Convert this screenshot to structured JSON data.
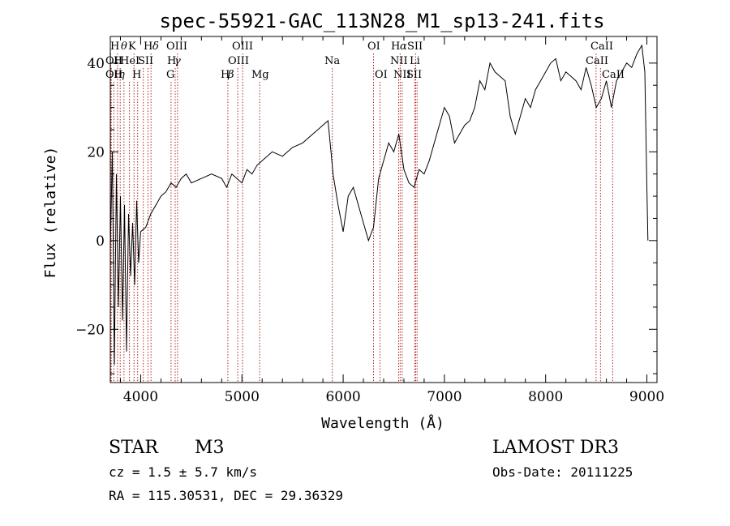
{
  "chart_data": {
    "type": "line",
    "title": "spec-55921-GAC_113N28_M1_sp13-241.fits",
    "xlabel": "Wavelength (Å)",
    "ylabel": "Flux (relative)",
    "xlim": [
      3700,
      9100
    ],
    "ylim": [
      -32,
      46
    ],
    "xticks": [
      4000,
      5000,
      6000,
      7000,
      8000,
      9000
    ],
    "yticks": [
      -20,
      0,
      20,
      40
    ],
    "xtick_labels": [
      "4000",
      "5000",
      "6000",
      "7000",
      "8000",
      "9000"
    ],
    "ytick_labels": [
      "−20",
      "0",
      "20",
      "40"
    ],
    "line_color": "#000000",
    "marker_color": "#b22222",
    "series": [
      {
        "name": "flux",
        "x": [
          3700,
          3720,
          3740,
          3760,
          3780,
          3800,
          3820,
          3840,
          3860,
          3880,
          3900,
          3920,
          3940,
          3960,
          3980,
          4000,
          4050,
          4100,
          4150,
          4200,
          4250,
          4300,
          4350,
          4400,
          4450,
          4500,
          4600,
          4700,
          4800,
          4850,
          4900,
          4950,
          5000,
          5050,
          5100,
          5150,
          5200,
          5300,
          5400,
          5500,
          5600,
          5700,
          5750,
          5800,
          5850,
          5880,
          5900,
          5950,
          6000,
          6050,
          6100,
          6150,
          6200,
          6250,
          6300,
          6350,
          6400,
          6450,
          6500,
          6550,
          6600,
          6650,
          6700,
          6750,
          6800,
          6850,
          6900,
          6950,
          7000,
          7050,
          7100,
          7150,
          7200,
          7250,
          7300,
          7350,
          7400,
          7450,
          7500,
          7550,
          7600,
          7650,
          7700,
          7750,
          7800,
          7850,
          7900,
          7950,
          8000,
          8050,
          8100,
          8150,
          8200,
          8250,
          8300,
          8350,
          8400,
          8450,
          8500,
          8550,
          8600,
          8650,
          8700,
          8750,
          8800,
          8850,
          8900,
          8950,
          8980,
          9000,
          9010
        ],
        "y": [
          -2,
          20,
          -28,
          15,
          -15,
          10,
          -18,
          8,
          -25,
          6,
          -8,
          4,
          -10,
          9,
          -5,
          2,
          3,
          6,
          8,
          10,
          11,
          13,
          12,
          14,
          15,
          13,
          14,
          15,
          14,
          12,
          15,
          14,
          13,
          16,
          15,
          17,
          18,
          20,
          19,
          21,
          22,
          24,
          25,
          26,
          27,
          20,
          15,
          8,
          2,
          10,
          12,
          8,
          4,
          0,
          3,
          14,
          18,
          22,
          20,
          24,
          16,
          13,
          12,
          16,
          15,
          18,
          22,
          26,
          30,
          28,
          22,
          24,
          26,
          27,
          30,
          36,
          34,
          40,
          38,
          37,
          36,
          28,
          24,
          28,
          32,
          30,
          34,
          36,
          38,
          40,
          41,
          36,
          38,
          37,
          36,
          34,
          39,
          35,
          30,
          32,
          36,
          30,
          36,
          38,
          40,
          39,
          42,
          44,
          38,
          12,
          0
        ]
      }
    ],
    "lines": [
      {
        "x": 3704,
        "rows": [
          1
        ]
      },
      {
        "x": 3710,
        "rows": [
          2
        ]
      },
      {
        "x": 3735,
        "rows": [
          3
        ]
      },
      {
        "x": 3771,
        "rows": [
          1
        ]
      },
      {
        "x": 3798,
        "rows": [
          2
        ]
      },
      {
        "x": 3835,
        "rows": [
          3
        ]
      },
      {
        "x": 3889,
        "rows": [
          1,
          2,
          3
        ]
      },
      {
        "x": 3934,
        "label": "K",
        "row": 1
      },
      {
        "x": 3970,
        "label": "H",
        "row": 3
      },
      {
        "x": 4026,
        "label": "HeI",
        "row": 2
      },
      {
        "x": 4072,
        "label": "SII",
        "row": 2
      },
      {
        "x": 4102,
        "label": "Hδ",
        "row": 1
      },
      {
        "x": 4300,
        "label": "G",
        "row": 3
      },
      {
        "x": 4341,
        "label": "Hγ",
        "row": 2
      },
      {
        "x": 4364,
        "label": "OIII",
        "row": 1
      },
      {
        "x": 4861,
        "label": "Hβ",
        "row": 3
      },
      {
        "x": 4959,
        "label": "OIII",
        "row": 2
      },
      {
        "x": 5007,
        "label": "OIII",
        "row": 1
      },
      {
        "x": 5175,
        "label": "Mg",
        "row": 3
      },
      {
        "x": 5893,
        "label": "Na",
        "row": 2
      },
      {
        "x": 6300,
        "label": "OI",
        "row": 1
      },
      {
        "x": 6364,
        "label": "OI",
        "row": 3
      },
      {
        "x": 6548,
        "label": "NII",
        "row": 2
      },
      {
        "x": 6563,
        "label": "Hα",
        "row": 1
      },
      {
        "x": 6583,
        "label": "NII",
        "row": 3
      },
      {
        "x": 6707,
        "label": "Li",
        "row": 2
      },
      {
        "x": 6716,
        "label": "SII",
        "row": 1
      },
      {
        "x": 6730,
        "label": "SII",
        "row": 3
      },
      {
        "x": 8498,
        "label": "CaII",
        "row": 1
      },
      {
        "x": 8542,
        "label": "CaII",
        "row": 2
      },
      {
        "x": 8662,
        "label": "CaII",
        "row": 3
      }
    ],
    "label_rows": [
      [
        "H",
        "θ",
        "K",
        "H",
        "δ",
        "OIII",
        "OIII",
        "OI",
        "H",
        "α",
        "SII",
        "CaII"
      ],
      [
        "OII",
        "H",
        "HeI",
        "SII",
        "H",
        "γ",
        "OIII",
        "Na",
        "NII",
        "Li",
        "CaII"
      ],
      [
        "OII",
        "H",
        "η",
        "H",
        "G",
        "H",
        "β",
        "Mg",
        "OI",
        "NII",
        "SII",
        "CaII"
      ]
    ]
  },
  "info": {
    "object_class": "STAR",
    "subclass": "M3",
    "survey": "LAMOST DR3",
    "redshift": "cz =  1.5 ± 5.7 km/s",
    "coords": "RA = 115.30531, DEC =  29.36329",
    "obs_date": "Obs-Date: 20111225"
  }
}
